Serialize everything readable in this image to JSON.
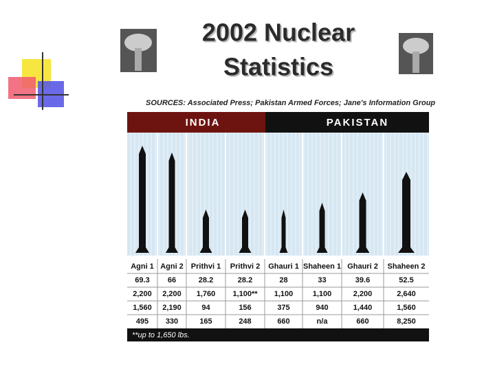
{
  "title": {
    "line1": "2002 Nuclear",
    "line2": "Statistics"
  },
  "graphic": {
    "sources": "SOURCES: Associated Press; Pakistan Armed Forces; Jane's Information Group",
    "groups": [
      "INDIA",
      "PAKISTAN"
    ],
    "table": {
      "header": [
        "Agni 1",
        "Agni 2",
        "Prithvi 1",
        "Prithvi 2",
        "Ghauri 1",
        "Shaheen 1",
        "Ghauri 2",
        "Shaheen 2"
      ],
      "rows": [
        [
          "69.3",
          "66",
          "28.2",
          "28.2",
          "28",
          "33",
          "39.6",
          "52.5"
        ],
        [
          "2,200",
          "2,200",
          "1,760",
          "1,100**",
          "1,100",
          "1,100",
          "2,200",
          "2,640"
        ],
        [
          "1,560",
          "2,190",
          "94",
          "156",
          "375",
          "940",
          "1,440",
          "1,560"
        ],
        [
          "495",
          "330",
          "165",
          "248",
          "660",
          "n/a",
          "660",
          "8,250"
        ]
      ]
    },
    "footnote": "**up to 1,650 lbs."
  }
}
